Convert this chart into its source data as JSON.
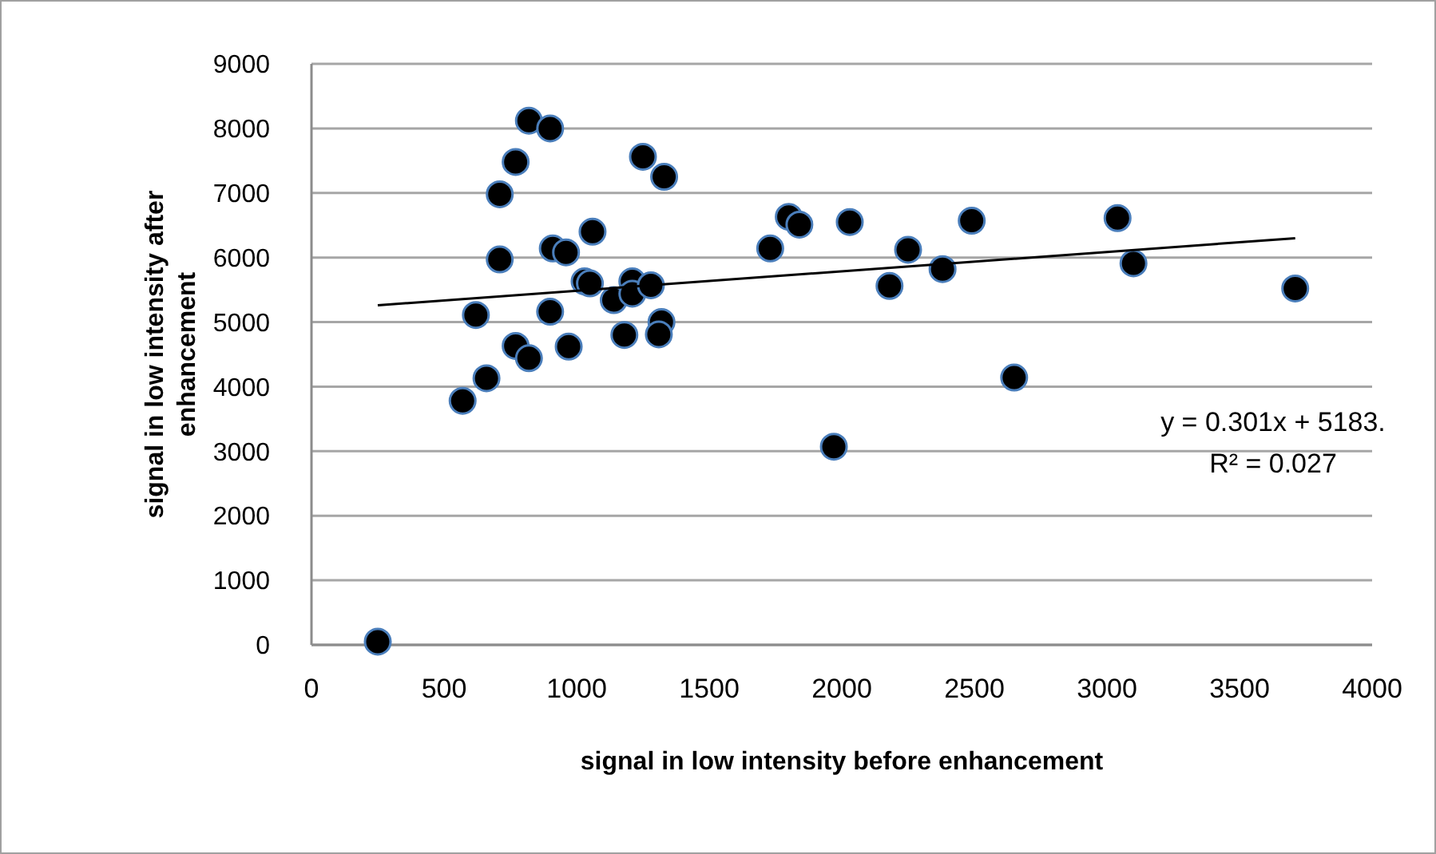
{
  "chart_data": {
    "type": "scatter",
    "xlabel": "signal in low intensity before enhancement",
    "ylabel": "signal in low intensity after enhancement",
    "xlim": [
      0,
      4000
    ],
    "xticks": [
      0,
      500,
      1000,
      1500,
      2000,
      2500,
      3000,
      3500,
      4000
    ],
    "ylim": [
      0,
      9000
    ],
    "yticks": [
      0,
      1000,
      2000,
      3000,
      4000,
      5000,
      6000,
      7000,
      8000,
      9000
    ],
    "grid": "y",
    "marker": "circle",
    "annotations": [
      "y = 0.301x + 5183.",
      "R² = 0.027"
    ],
    "series": [
      {
        "color": "#000000",
        "x": [
          250,
          570,
          660,
          620,
          770,
          820,
          710,
          710,
          770,
          820,
          900,
          910,
          960,
          900,
          970,
          1060,
          1030,
          1050,
          1140,
          1180,
          1210,
          1210,
          1280,
          1250,
          1330,
          1320,
          1310,
          1730,
          1800,
          1840,
          2030,
          2180,
          2250,
          2380,
          2490,
          1970,
          2650,
          3040,
          3100,
          3710
        ],
        "values": [
          50,
          3780,
          4130,
          5110,
          4630,
          4440,
          5970,
          6980,
          7480,
          8120,
          8000,
          6140,
          6080,
          5160,
          4620,
          6400,
          5630,
          5600,
          5340,
          4800,
          5630,
          5440,
          5570,
          7560,
          7250,
          5000,
          4810,
          6140,
          6630,
          6510,
          6550,
          5560,
          6120,
          5820,
          6570,
          3070,
          4140,
          6610,
          5910,
          5520
        ]
      },
      {
        "type": "line",
        "color": "#000000",
        "marker": "none",
        "x": [
          250,
          3710
        ],
        "values": [
          5260,
          6300
        ]
      }
    ]
  }
}
